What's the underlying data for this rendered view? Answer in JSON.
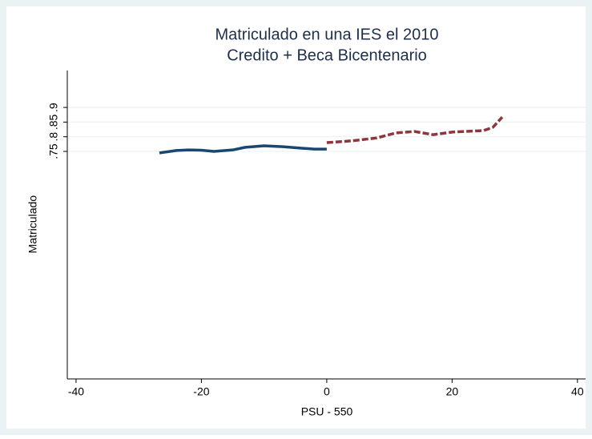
{
  "chart_data": {
    "type": "line",
    "title": "Matriculado en una IES el 2010",
    "subtitle": "Credito + Beca Bicentenario",
    "x_label": "PSU - 550",
    "y_label": "Matriculado",
    "xlim": [
      -41.4,
      41.3
    ],
    "xticks": [
      -40,
      -20,
      0,
      20,
      40
    ],
    "ylim": [
      -0.026,
      1.026
    ],
    "yticks": [
      {
        "value": 0.75,
        "label": ".75"
      },
      {
        "value": 0.8,
        "label": ".8"
      },
      {
        "value": 0.85,
        "label": ".85"
      },
      {
        "value": 0.9,
        "label": ".9"
      }
    ],
    "grid": true,
    "series": [
      {
        "color": "#1a476f",
        "dash": false,
        "x": [
          -26.7,
          -24,
          -22,
          -20,
          -18,
          -15,
          -13,
          -10,
          -7,
          -4,
          -2,
          0
        ],
        "values": [
          0.745,
          0.753,
          0.755,
          0.754,
          0.75,
          0.755,
          0.764,
          0.769,
          0.766,
          0.761,
          0.758,
          0.758
        ]
      },
      {
        "color": "#90353b",
        "dash": true,
        "x": [
          0,
          4,
          8,
          11,
          14,
          17,
          20,
          25,
          26.5,
          28
        ],
        "values": [
          0.78,
          0.786,
          0.796,
          0.813,
          0.818,
          0.807,
          0.816,
          0.821,
          0.832,
          0.867
        ]
      }
    ]
  }
}
